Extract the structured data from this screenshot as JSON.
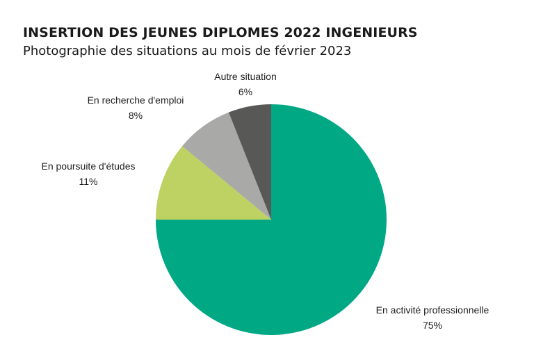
{
  "chart_data": {
    "type": "pie",
    "title": "INSERTION DES JEUNES DIPLOMES 2022 INGENIEURS",
    "subtitle": "Photographie des situations au mois de février 2023",
    "start_angle_deg": 0,
    "direction": "clockwise",
    "slices": [
      {
        "label": "En activité professionnelle",
        "value": 75,
        "display": "75%",
        "color": "#00a884"
      },
      {
        "label": "En poursuite d'études",
        "value": 11,
        "display": "11%",
        "color": "#bdd262"
      },
      {
        "label": "En recherche d'emploi",
        "value": 8,
        "display": "8%",
        "color": "#a9a9a7"
      },
      {
        "label": "Autre situation",
        "value": 6,
        "display": "6%",
        "color": "#585856"
      }
    ]
  }
}
